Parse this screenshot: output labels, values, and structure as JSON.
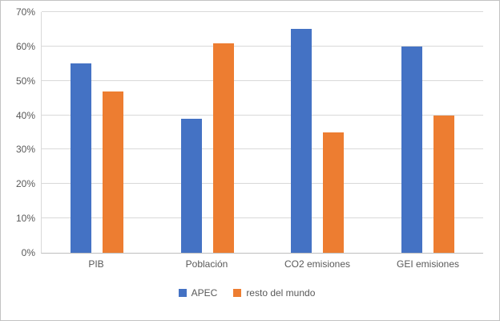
{
  "chart_data": {
    "type": "bar",
    "categories": [
      "PIB",
      "Población",
      "CO2 emisiones",
      "GEI emisiones"
    ],
    "series": [
      {
        "name": "APEC",
        "color": "#4472C4",
        "values": [
          55,
          39,
          65,
          60
        ]
      },
      {
        "name": "resto del mundo",
        "color": "#ED7D31",
        "values": [
          47,
          61,
          35,
          40
        ]
      }
    ],
    "title": "",
    "xlabel": "",
    "ylabel": "",
    "ylim": [
      0,
      70
    ],
    "ytick_step": 10,
    "ytick_suffix": "%",
    "grid": true,
    "legend_position": "bottom",
    "colors": {
      "gridline": "#d9d9d9",
      "axis_line": "#bfbfbf",
      "tick_text": "#595959",
      "frame_border": "#c3c3c3"
    }
  }
}
